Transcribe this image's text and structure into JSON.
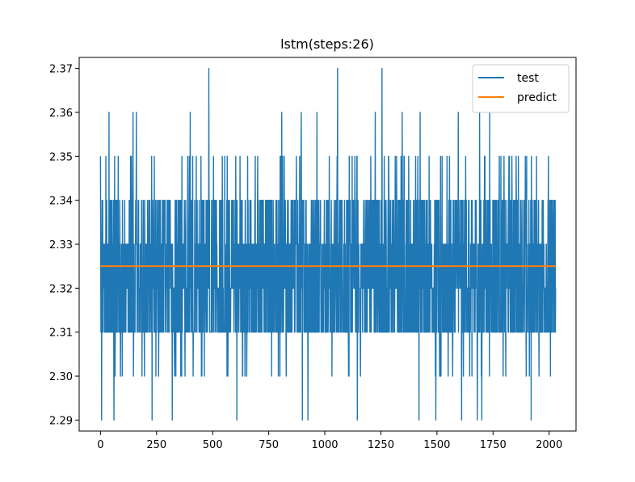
{
  "chart_data": {
    "type": "line",
    "title": "lstm(steps:26)",
    "xlabel": "",
    "ylabel": "",
    "xlim": [
      -95,
      2120
    ],
    "ylim": [
      2.2875,
      2.3725
    ],
    "x_ticks": [
      0,
      250,
      500,
      750,
      1000,
      1250,
      1500,
      1750,
      2000
    ],
    "x_tick_labels": [
      "0",
      "250",
      "500",
      "750",
      "1000",
      "1250",
      "1500",
      "1750",
      "2000"
    ],
    "y_ticks": [
      2.29,
      2.3,
      2.31,
      2.32,
      2.33,
      2.34,
      2.35,
      2.36,
      2.37
    ],
    "y_tick_labels": [
      "2.29",
      "2.30",
      "2.31",
      "2.32",
      "2.33",
      "2.34",
      "2.35",
      "2.36",
      "2.37"
    ],
    "grid": false,
    "legend_position": "top-right",
    "series": [
      {
        "name": "test",
        "color": "#1f77b4",
        "n_points": 2030,
        "value_levels": [
          2.29,
          2.3,
          2.31,
          2.32,
          2.33,
          2.34,
          2.35,
          2.36,
          2.37
        ],
        "dense_band": [
          2.31,
          2.34
        ],
        "spikes_high": [
          {
            "x": 38,
            "y": 2.36
          },
          {
            "x": 145,
            "y": 2.36
          },
          {
            "x": 160,
            "y": 2.36
          },
          {
            "x": 400,
            "y": 2.36
          },
          {
            "x": 483,
            "y": 2.37
          },
          {
            "x": 808,
            "y": 2.36
          },
          {
            "x": 895,
            "y": 2.36
          },
          {
            "x": 965,
            "y": 2.36
          },
          {
            "x": 1057,
            "y": 2.37
          },
          {
            "x": 1225,
            "y": 2.36
          },
          {
            "x": 1255,
            "y": 2.37
          },
          {
            "x": 1345,
            "y": 2.36
          },
          {
            "x": 1425,
            "y": 2.36
          },
          {
            "x": 1595,
            "y": 2.36
          },
          {
            "x": 1690,
            "y": 2.36
          },
          {
            "x": 1735,
            "y": 2.36
          },
          {
            "x": 1920,
            "y": 2.36
          }
        ],
        "spikes_low": [
          {
            "x": 5,
            "y": 2.29
          },
          {
            "x": 60,
            "y": 2.29
          },
          {
            "x": 230,
            "y": 2.29
          },
          {
            "x": 320,
            "y": 2.29
          },
          {
            "x": 608,
            "y": 2.29
          },
          {
            "x": 900,
            "y": 2.29
          },
          {
            "x": 925,
            "y": 2.29
          },
          {
            "x": 1145,
            "y": 2.29
          },
          {
            "x": 1420,
            "y": 2.29
          },
          {
            "x": 1495,
            "y": 2.29
          },
          {
            "x": 1610,
            "y": 2.29
          },
          {
            "x": 1680,
            "y": 2.29
          },
          {
            "x": 1700,
            "y": 2.29
          },
          {
            "x": 1920,
            "y": 2.29
          }
        ]
      },
      {
        "name": "predict",
        "color": "#ff7f0e",
        "x": [
          0,
          2029
        ],
        "values": [
          2.325,
          2.325
        ]
      }
    ]
  }
}
